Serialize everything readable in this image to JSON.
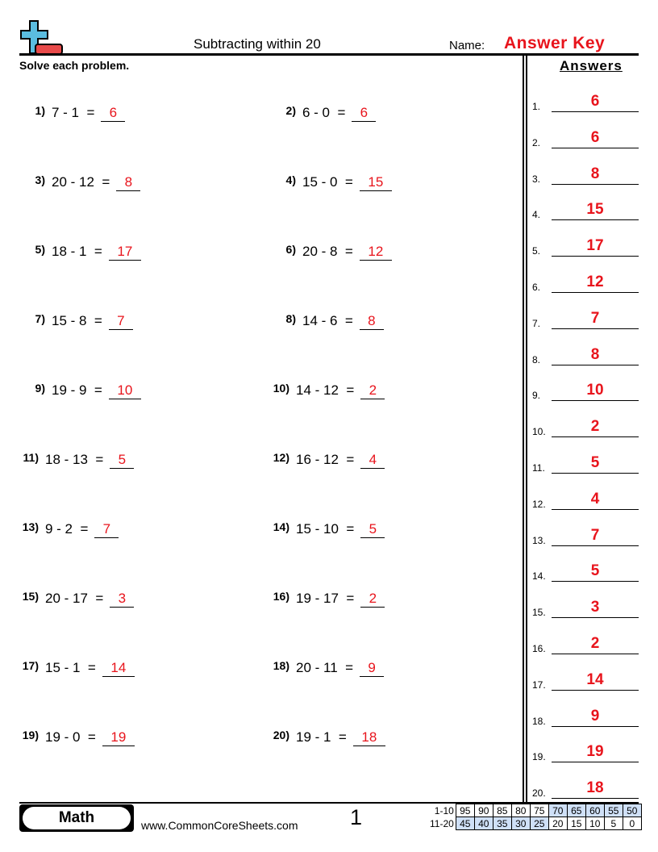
{
  "header": {
    "title": "Subtracting within 20",
    "name_label": "Name:",
    "name_value": "Answer Key",
    "logo": "plus-minus-logo-icon"
  },
  "instructions": "Solve each problem.",
  "answers_heading": "Answers",
  "problems": [
    {
      "n": "1)",
      "q": "7 - 1  =",
      "a": "6"
    },
    {
      "n": "2)",
      "q": "6 - 0  =",
      "a": "6"
    },
    {
      "n": "3)",
      "q": "20 - 12  =",
      "a": "8"
    },
    {
      "n": "4)",
      "q": "15 - 0  =",
      "a": "15"
    },
    {
      "n": "5)",
      "q": "18 - 1  =",
      "a": "17"
    },
    {
      "n": "6)",
      "q": "20 - 8  =",
      "a": "12"
    },
    {
      "n": "7)",
      "q": "15 - 8  =",
      "a": "7"
    },
    {
      "n": "8)",
      "q": "14 - 6  =",
      "a": "8"
    },
    {
      "n": "9)",
      "q": "19 - 9  =",
      "a": "10"
    },
    {
      "n": "10)",
      "q": "14 - 12  =",
      "a": "2"
    },
    {
      "n": "11)",
      "q": "18 - 13  =",
      "a": "5"
    },
    {
      "n": "12)",
      "q": "16 - 12  =",
      "a": "4"
    },
    {
      "n": "13)",
      "q": "9 - 2  =",
      "a": "7"
    },
    {
      "n": "14)",
      "q": "15 - 10  =",
      "a": "5"
    },
    {
      "n": "15)",
      "q": "20 - 17  =",
      "a": "3"
    },
    {
      "n": "16)",
      "q": "19 - 17  =",
      "a": "2"
    },
    {
      "n": "17)",
      "q": "15 - 1  =",
      "a": "14"
    },
    {
      "n": "18)",
      "q": "20 - 11  =",
      "a": "9"
    },
    {
      "n": "19)",
      "q": "19 - 0  =",
      "a": "19"
    },
    {
      "n": "20)",
      "q": "19 - 1  =",
      "a": "18"
    }
  ],
  "answer_key": [
    {
      "n": "1.",
      "a": "6"
    },
    {
      "n": "2.",
      "a": "6"
    },
    {
      "n": "3.",
      "a": "8"
    },
    {
      "n": "4.",
      "a": "15"
    },
    {
      "n": "5.",
      "a": "17"
    },
    {
      "n": "6.",
      "a": "12"
    },
    {
      "n": "7.",
      "a": "7"
    },
    {
      "n": "8.",
      "a": "8"
    },
    {
      "n": "9.",
      "a": "10"
    },
    {
      "n": "10.",
      "a": "2"
    },
    {
      "n": "11.",
      "a": "5"
    },
    {
      "n": "12.",
      "a": "4"
    },
    {
      "n": "13.",
      "a": "7"
    },
    {
      "n": "14.",
      "a": "5"
    },
    {
      "n": "15.",
      "a": "3"
    },
    {
      "n": "16.",
      "a": "2"
    },
    {
      "n": "17.",
      "a": "14"
    },
    {
      "n": "18.",
      "a": "9"
    },
    {
      "n": "19.",
      "a": "19"
    },
    {
      "n": "20.",
      "a": "18"
    }
  ],
  "footer": {
    "subject": "Math",
    "website": "www.CommonCoreSheets.com",
    "page": "1",
    "score_rows": [
      {
        "label": "1-10",
        "cells": [
          "95",
          "90",
          "85",
          "80",
          "75",
          "70",
          "65",
          "60",
          "55",
          "50"
        ],
        "highlight_from": 5,
        "highlight_to": 9
      },
      {
        "label": "11-20",
        "cells": [
          "45",
          "40",
          "35",
          "30",
          "25",
          "20",
          "15",
          "10",
          "5",
          "0"
        ],
        "highlight_from": 0,
        "highlight_to": 4
      }
    ],
    "highlight_color": "#cfe0f7"
  },
  "colors": {
    "answer": "#e8141c",
    "logo_blue": "#5bbde0",
    "logo_red": "#e84a4a"
  }
}
